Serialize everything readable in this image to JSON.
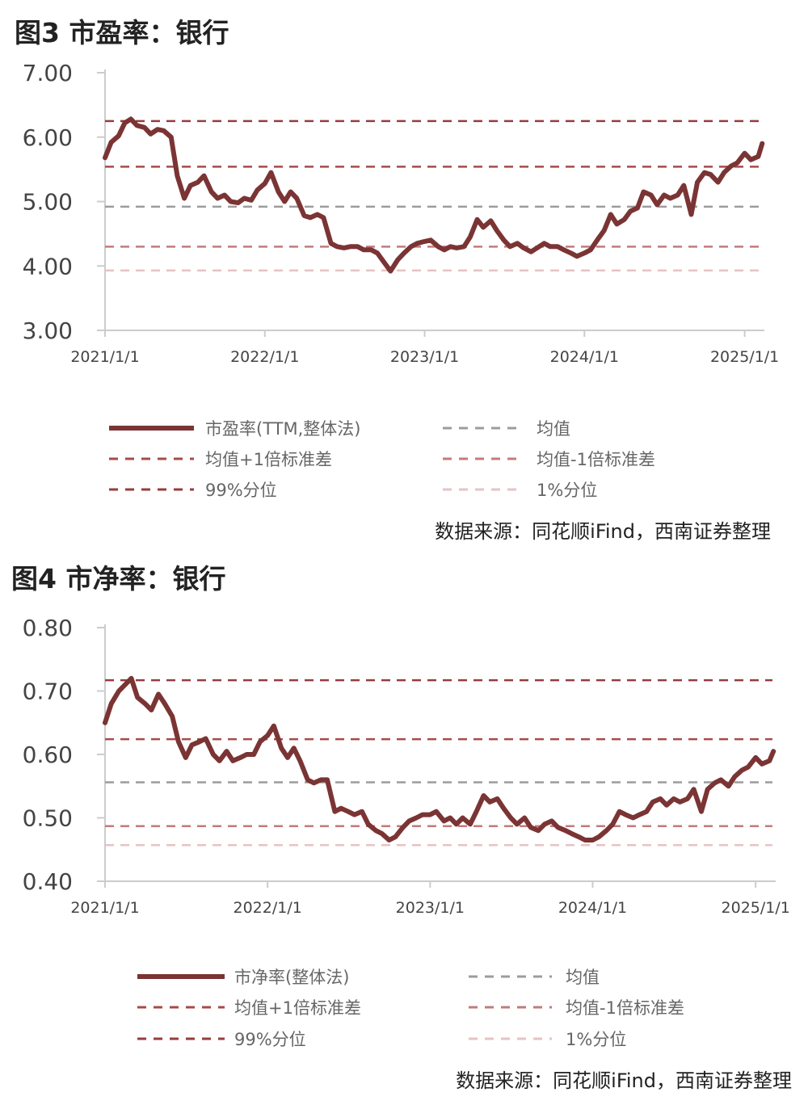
{
  "figure3": {
    "title": "图3  市盈率：银行",
    "source": "数据来源：同花顺iFind，西南证券整理"
  },
  "figure4": {
    "title": "图4  市净率：银行",
    "source": "数据来源：同花顺iFind，西南证券整理"
  },
  "colors": {
    "main": "#7b3434",
    "plus1sd": "#a84a4a",
    "p99": "#963c3c",
    "mean": "#9c9c9c",
    "minus1sd": "#c27b7b",
    "p1": "#e6c3c3",
    "axis": "#cccccc"
  },
  "chart_data": [
    {
      "type": "line",
      "title": "图3  市盈率：银行",
      "xlabel": "",
      "ylabel": "",
      "ylim": [
        3.0,
        7.0
      ],
      "yticks": [
        "3.00",
        "4.00",
        "5.00",
        "6.00",
        "7.00"
      ],
      "xticks": [
        "2021/1/1",
        "2022/1/1",
        "2023/1/1",
        "2024/1/1",
        "2025/1/1"
      ],
      "xrange": [
        "2021-01-01",
        "2025-02-15"
      ],
      "grid": false,
      "legend": "bottom",
      "series": [
        {
          "name": "市盈率(TTM,整体法)",
          "style": "solid",
          "x": [
            "2021-01-01",
            "2021-01-15",
            "2021-02-01",
            "2021-02-15",
            "2021-03-01",
            "2021-03-15",
            "2021-04-01",
            "2021-04-15",
            "2021-05-01",
            "2021-05-15",
            "2021-06-01",
            "2021-06-15",
            "2021-07-01",
            "2021-07-15",
            "2021-08-01",
            "2021-08-15",
            "2021-09-01",
            "2021-09-15",
            "2021-10-01",
            "2021-10-15",
            "2021-11-01",
            "2021-11-15",
            "2021-12-01",
            "2021-12-15",
            "2022-01-01",
            "2022-01-15",
            "2022-02-01",
            "2022-02-15",
            "2022-03-01",
            "2022-03-15",
            "2022-04-01",
            "2022-04-15",
            "2022-05-01",
            "2022-05-15",
            "2022-06-01",
            "2022-06-15",
            "2022-07-01",
            "2022-07-15",
            "2022-08-01",
            "2022-08-15",
            "2022-09-01",
            "2022-09-15",
            "2022-10-01",
            "2022-10-15",
            "2022-11-01",
            "2022-11-15",
            "2022-12-01",
            "2022-12-15",
            "2023-01-01",
            "2023-01-15",
            "2023-02-01",
            "2023-02-15",
            "2023-03-01",
            "2023-03-15",
            "2023-04-01",
            "2023-04-15",
            "2023-05-01",
            "2023-05-15",
            "2023-06-01",
            "2023-06-15",
            "2023-07-01",
            "2023-07-15",
            "2023-08-01",
            "2023-08-15",
            "2023-09-01",
            "2023-09-15",
            "2023-10-01",
            "2023-10-15",
            "2023-11-01",
            "2023-11-15",
            "2023-12-01",
            "2023-12-15",
            "2024-01-01",
            "2024-01-15",
            "2024-02-01",
            "2024-02-15",
            "2024-03-01",
            "2024-03-15",
            "2024-04-01",
            "2024-04-15",
            "2024-05-01",
            "2024-05-15",
            "2024-06-01",
            "2024-06-15",
            "2024-07-01",
            "2024-07-15",
            "2024-08-01",
            "2024-08-15",
            "2024-09-01",
            "2024-09-15",
            "2024-10-01",
            "2024-10-15",
            "2024-11-01",
            "2024-11-15",
            "2024-12-01",
            "2024-12-15",
            "2025-01-01",
            "2025-01-15",
            "2025-02-01",
            "2025-02-10"
          ],
          "values": [
            5.68,
            5.92,
            6.02,
            6.22,
            6.28,
            6.18,
            6.15,
            6.05,
            6.12,
            6.1,
            6.0,
            5.4,
            5.05,
            5.25,
            5.3,
            5.4,
            5.15,
            5.05,
            5.1,
            5.0,
            4.98,
            5.05,
            5.02,
            5.18,
            5.28,
            5.45,
            5.15,
            5.0,
            5.15,
            5.05,
            4.78,
            4.75,
            4.8,
            4.75,
            4.35,
            4.3,
            4.28,
            4.3,
            4.3,
            4.25,
            4.25,
            4.2,
            4.05,
            3.92,
            4.1,
            4.2,
            4.3,
            4.35,
            4.38,
            4.4,
            4.3,
            4.25,
            4.3,
            4.28,
            4.3,
            4.45,
            4.72,
            4.6,
            4.7,
            4.55,
            4.4,
            4.3,
            4.35,
            4.28,
            4.22,
            4.28,
            4.35,
            4.3,
            4.3,
            4.25,
            4.2,
            4.15,
            4.2,
            4.25,
            4.42,
            4.55,
            4.8,
            4.65,
            4.72,
            4.85,
            4.9,
            5.15,
            5.1,
            4.95,
            5.1,
            5.05,
            5.1,
            5.25,
            4.8,
            5.3,
            5.45,
            5.42,
            5.3,
            5.45,
            5.55,
            5.6,
            5.75,
            5.65,
            5.7,
            5.9
          ]
        },
        {
          "name": "均值",
          "style": "dashed",
          "value": 4.92
        },
        {
          "name": "均值+1倍标准差",
          "style": "dashed",
          "value": 5.54
        },
        {
          "name": "均值-1倍标准差",
          "style": "dashed",
          "value": 4.3
        },
        {
          "name": "99%分位",
          "style": "dashed",
          "value": 6.25
        },
        {
          "name": "1%分位",
          "style": "dashed",
          "value": 3.93
        }
      ]
    },
    {
      "type": "line",
      "title": "图4  市净率：银行",
      "xlabel": "",
      "ylabel": "",
      "ylim": [
        0.4,
        0.8
      ],
      "yticks": [
        "0.40",
        "0.50",
        "0.60",
        "0.70",
        "0.80"
      ],
      "xticks": [
        "2021/1/1",
        "2022/1/1",
        "2023/1/1",
        "2024/1/1",
        "2025/1/1"
      ],
      "xrange": [
        "2021-01-01",
        "2025-02-15"
      ],
      "grid": false,
      "legend": "bottom",
      "series": [
        {
          "name": "市净率(整体法)",
          "style": "solid",
          "x": [
            "2021-01-01",
            "2021-01-15",
            "2021-02-01",
            "2021-02-15",
            "2021-03-01",
            "2021-03-15",
            "2021-04-01",
            "2021-04-15",
            "2021-05-01",
            "2021-05-15",
            "2021-06-01",
            "2021-06-15",
            "2021-07-01",
            "2021-07-15",
            "2021-08-01",
            "2021-08-15",
            "2021-09-01",
            "2021-09-15",
            "2021-10-01",
            "2021-10-15",
            "2021-11-01",
            "2021-11-15",
            "2021-12-01",
            "2021-12-15",
            "2022-01-01",
            "2022-01-15",
            "2022-02-01",
            "2022-02-15",
            "2022-03-01",
            "2022-03-15",
            "2022-04-01",
            "2022-04-15",
            "2022-05-01",
            "2022-05-15",
            "2022-06-01",
            "2022-06-15",
            "2022-07-01",
            "2022-07-15",
            "2022-08-01",
            "2022-08-15",
            "2022-09-01",
            "2022-09-15",
            "2022-10-01",
            "2022-10-15",
            "2022-11-01",
            "2022-11-15",
            "2022-12-01",
            "2022-12-15",
            "2023-01-01",
            "2023-01-15",
            "2023-02-01",
            "2023-02-15",
            "2023-03-01",
            "2023-03-15",
            "2023-04-01",
            "2023-04-15",
            "2023-05-01",
            "2023-05-15",
            "2023-06-01",
            "2023-06-15",
            "2023-07-01",
            "2023-07-15",
            "2023-08-01",
            "2023-08-15",
            "2023-09-01",
            "2023-09-15",
            "2023-10-01",
            "2023-10-15",
            "2023-11-01",
            "2023-11-15",
            "2023-12-01",
            "2023-12-15",
            "2024-01-01",
            "2024-01-15",
            "2024-02-01",
            "2024-02-15",
            "2024-03-01",
            "2024-03-15",
            "2024-04-01",
            "2024-04-15",
            "2024-05-01",
            "2024-05-15",
            "2024-06-01",
            "2024-06-15",
            "2024-07-01",
            "2024-07-15",
            "2024-08-01",
            "2024-08-15",
            "2024-09-01",
            "2024-09-15",
            "2024-10-01",
            "2024-10-15",
            "2024-11-01",
            "2024-11-15",
            "2024-12-01",
            "2024-12-15",
            "2025-01-01",
            "2025-01-15",
            "2025-02-01",
            "2025-02-10"
          ],
          "values": [
            0.65,
            0.68,
            0.7,
            0.71,
            0.72,
            0.69,
            0.68,
            0.67,
            0.695,
            0.68,
            0.66,
            0.62,
            0.595,
            0.615,
            0.62,
            0.625,
            0.6,
            0.59,
            0.605,
            0.59,
            0.595,
            0.6,
            0.6,
            0.62,
            0.63,
            0.645,
            0.61,
            0.595,
            0.61,
            0.59,
            0.56,
            0.555,
            0.56,
            0.56,
            0.51,
            0.515,
            0.51,
            0.505,
            0.51,
            0.49,
            0.48,
            0.475,
            0.465,
            0.47,
            0.485,
            0.495,
            0.5,
            0.505,
            0.505,
            0.51,
            0.495,
            0.5,
            0.49,
            0.5,
            0.49,
            0.51,
            0.535,
            0.525,
            0.53,
            0.515,
            0.5,
            0.49,
            0.5,
            0.485,
            0.48,
            0.49,
            0.495,
            0.485,
            0.48,
            0.475,
            0.47,
            0.465,
            0.465,
            0.47,
            0.48,
            0.49,
            0.51,
            0.505,
            0.5,
            0.505,
            0.51,
            0.525,
            0.53,
            0.52,
            0.53,
            0.525,
            0.53,
            0.545,
            0.51,
            0.545,
            0.555,
            0.56,
            0.55,
            0.565,
            0.575,
            0.58,
            0.595,
            0.585,
            0.59,
            0.605
          ]
        },
        {
          "name": "均值",
          "style": "dashed",
          "value": 0.556
        },
        {
          "name": "均值+1倍标准差",
          "style": "dashed",
          "value": 0.624
        },
        {
          "name": "均值-1倍标准差",
          "style": "dashed",
          "value": 0.487
        },
        {
          "name": "99%分位",
          "style": "dashed",
          "value": 0.717
        },
        {
          "name": "1%分位",
          "style": "dashed",
          "value": 0.457
        }
      ]
    }
  ]
}
